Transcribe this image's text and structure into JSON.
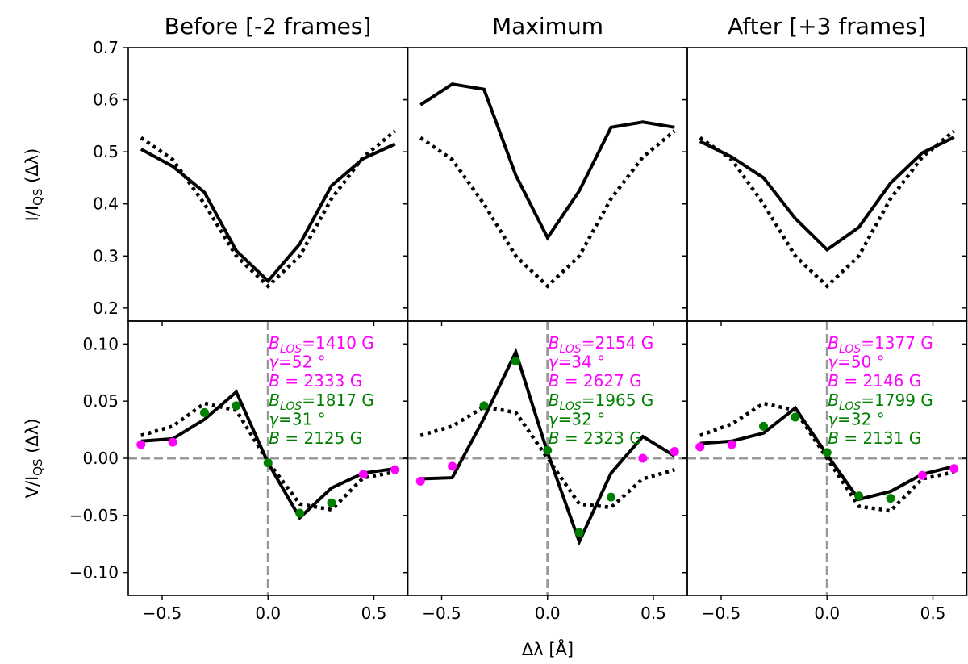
{
  "figure": {
    "titles": [
      "Before [-2 frames]",
      "Maximum",
      "After [+3 frames]"
    ],
    "ylabel_top": "I/I_QS (Δλ)",
    "ylabel_bottom": "V/I_QS (Δλ)",
    "xlabel": "Δλ [Å]",
    "colors": {
      "fit1": "#ff00ff",
      "fit2": "#008000",
      "guide": "#999999",
      "profile": "#000000"
    }
  },
  "chart_data": [
    {
      "type": "line",
      "panel": "top-left",
      "title": "Before [-2 frames]",
      "ylabel": "I/I_QS (Δλ)",
      "xlim": [
        -0.66,
        0.66
      ],
      "ylim": [
        0.175,
        0.7
      ],
      "yticks": [
        0.2,
        0.3,
        0.4,
        0.5,
        0.6,
        0.7
      ],
      "x": [
        -0.6,
        -0.45,
        -0.3,
        -0.15,
        0.0,
        0.15,
        0.3,
        0.45,
        0.6
      ],
      "series": [
        {
          "style": "solid",
          "values": [
            0.505,
            0.472,
            0.422,
            0.31,
            0.252,
            0.323,
            0.435,
            0.487,
            0.515
          ]
        },
        {
          "style": "dotted",
          "values": [
            0.527,
            0.485,
            0.4,
            0.3,
            0.242,
            0.3,
            0.41,
            0.49,
            0.54
          ]
        }
      ]
    },
    {
      "type": "line",
      "panel": "top-middle",
      "title": "Maximum",
      "xlim": [
        -0.66,
        0.66
      ],
      "ylim": [
        0.175,
        0.7
      ],
      "x": [
        -0.6,
        -0.45,
        -0.3,
        -0.15,
        0.0,
        0.15,
        0.3,
        0.45,
        0.6
      ],
      "series": [
        {
          "style": "solid",
          "values": [
            0.59,
            0.63,
            0.62,
            0.455,
            0.335,
            0.425,
            0.547,
            0.557,
            0.547
          ]
        },
        {
          "style": "dotted",
          "values": [
            0.527,
            0.485,
            0.4,
            0.3,
            0.242,
            0.3,
            0.41,
            0.49,
            0.54
          ]
        }
      ]
    },
    {
      "type": "line",
      "panel": "top-right",
      "title": "After [+3 frames]",
      "xlim": [
        -0.66,
        0.66
      ],
      "ylim": [
        0.175,
        0.7
      ],
      "x": [
        -0.6,
        -0.45,
        -0.3,
        -0.15,
        0.0,
        0.15,
        0.3,
        0.45,
        0.6
      ],
      "series": [
        {
          "style": "solid",
          "values": [
            0.52,
            0.49,
            0.45,
            0.372,
            0.312,
            0.355,
            0.44,
            0.498,
            0.528
          ]
        },
        {
          "style": "dotted",
          "values": [
            0.527,
            0.485,
            0.4,
            0.3,
            0.242,
            0.3,
            0.41,
            0.49,
            0.54
          ]
        }
      ]
    },
    {
      "type": "line",
      "panel": "bottom-left",
      "ylabel": "V/I_QS (Δλ)",
      "xlim": [
        -0.66,
        0.66
      ],
      "ylim": [
        -0.12,
        0.12
      ],
      "yticks": [
        -0.1,
        -0.05,
        0.0,
        0.05,
        0.1
      ],
      "xticks": [
        -0.5,
        0.0,
        0.5
      ],
      "x": [
        -0.6,
        -0.45,
        -0.3,
        -0.15,
        0.0,
        0.15,
        0.3,
        0.45,
        0.6
      ],
      "series": [
        {
          "style": "solid",
          "values": [
            0.015,
            0.017,
            0.034,
            0.058,
            -0.004,
            -0.052,
            -0.026,
            -0.013,
            -0.009
          ]
        },
        {
          "style": "dotted",
          "values": [
            0.02,
            0.028,
            0.048,
            0.042,
            -0.003,
            -0.04,
            -0.045,
            -0.017,
            -0.012
          ]
        }
      ],
      "points_magenta": {
        "x": [
          -0.6,
          -0.45,
          0.45,
          0.6
        ],
        "y": [
          0.012,
          0.014,
          -0.014,
          -0.01
        ]
      },
      "points_green": {
        "x": [
          -0.3,
          -0.15,
          0.0,
          0.15,
          0.3
        ],
        "y": [
          0.04,
          0.046,
          -0.004,
          -0.048,
          -0.039
        ]
      },
      "annotations": {
        "magenta": [
          "B_LOS=1410 G",
          "γ=52 °",
          "B = 2333 G"
        ],
        "green": [
          "B_LOS=1817 G",
          "γ=31 °",
          "B = 2125 G"
        ]
      }
    },
    {
      "type": "line",
      "panel": "bottom-middle",
      "xlim": [
        -0.66,
        0.66
      ],
      "ylim": [
        -0.12,
        0.12
      ],
      "xticks": [
        -0.5,
        0.0,
        0.5
      ],
      "x": [
        -0.6,
        -0.45,
        -0.3,
        -0.15,
        0.0,
        0.15,
        0.3,
        0.45,
        0.6
      ],
      "series": [
        {
          "style": "solid",
          "values": [
            -0.018,
            -0.017,
            0.035,
            0.093,
            0.005,
            -0.073,
            -0.013,
            0.019,
            0.002
          ]
        },
        {
          "style": "dotted",
          "values": [
            0.02,
            0.028,
            0.045,
            0.04,
            0.0,
            -0.04,
            -0.043,
            -0.018,
            -0.01
          ]
        }
      ],
      "points_magenta": {
        "x": [
          -0.6,
          -0.45,
          0.45,
          0.6
        ],
        "y": [
          -0.02,
          -0.007,
          0.0,
          0.006
        ]
      },
      "points_green": {
        "x": [
          -0.3,
          -0.15,
          0.0,
          0.15,
          0.3
        ],
        "y": [
          0.046,
          0.085,
          0.007,
          -0.065,
          -0.034
        ]
      },
      "annotations": {
        "magenta": [
          "B_LOS=2154 G",
          "γ=34 °",
          "B = 2627 G"
        ],
        "green": [
          "B_LOS=1965 G",
          "γ=32 °",
          "B = 2323 G"
        ]
      }
    },
    {
      "type": "line",
      "panel": "bottom-right",
      "xlim": [
        -0.66,
        0.66
      ],
      "ylim": [
        -0.12,
        0.12
      ],
      "xticks": [
        -0.5,
        0.0,
        0.5
      ],
      "x": [
        -0.6,
        -0.45,
        -0.3,
        -0.15,
        0.0,
        0.15,
        0.3,
        0.45,
        0.6
      ],
      "series": [
        {
          "style": "solid",
          "values": [
            0.013,
            0.015,
            0.022,
            0.044,
            0.003,
            -0.036,
            -0.029,
            -0.014,
            -0.007
          ]
        },
        {
          "style": "dotted",
          "values": [
            0.02,
            0.03,
            0.048,
            0.042,
            0.0,
            -0.042,
            -0.046,
            -0.018,
            -0.012
          ]
        }
      ],
      "points_magenta": {
        "x": [
          -0.6,
          -0.45,
          0.45,
          0.6
        ],
        "y": [
          0.01,
          0.012,
          -0.015,
          -0.009
        ]
      },
      "points_green": {
        "x": [
          -0.3,
          -0.15,
          0.0,
          0.15,
          0.3
        ],
        "y": [
          0.028,
          0.036,
          0.005,
          -0.033,
          -0.035
        ]
      },
      "annotations": {
        "magenta": [
          "B_LOS=1377 G",
          "γ=50 °",
          "B = 2146 G"
        ],
        "green": [
          "B_LOS=1799 G",
          "γ=32 °",
          "B = 2131 G"
        ]
      }
    }
  ]
}
